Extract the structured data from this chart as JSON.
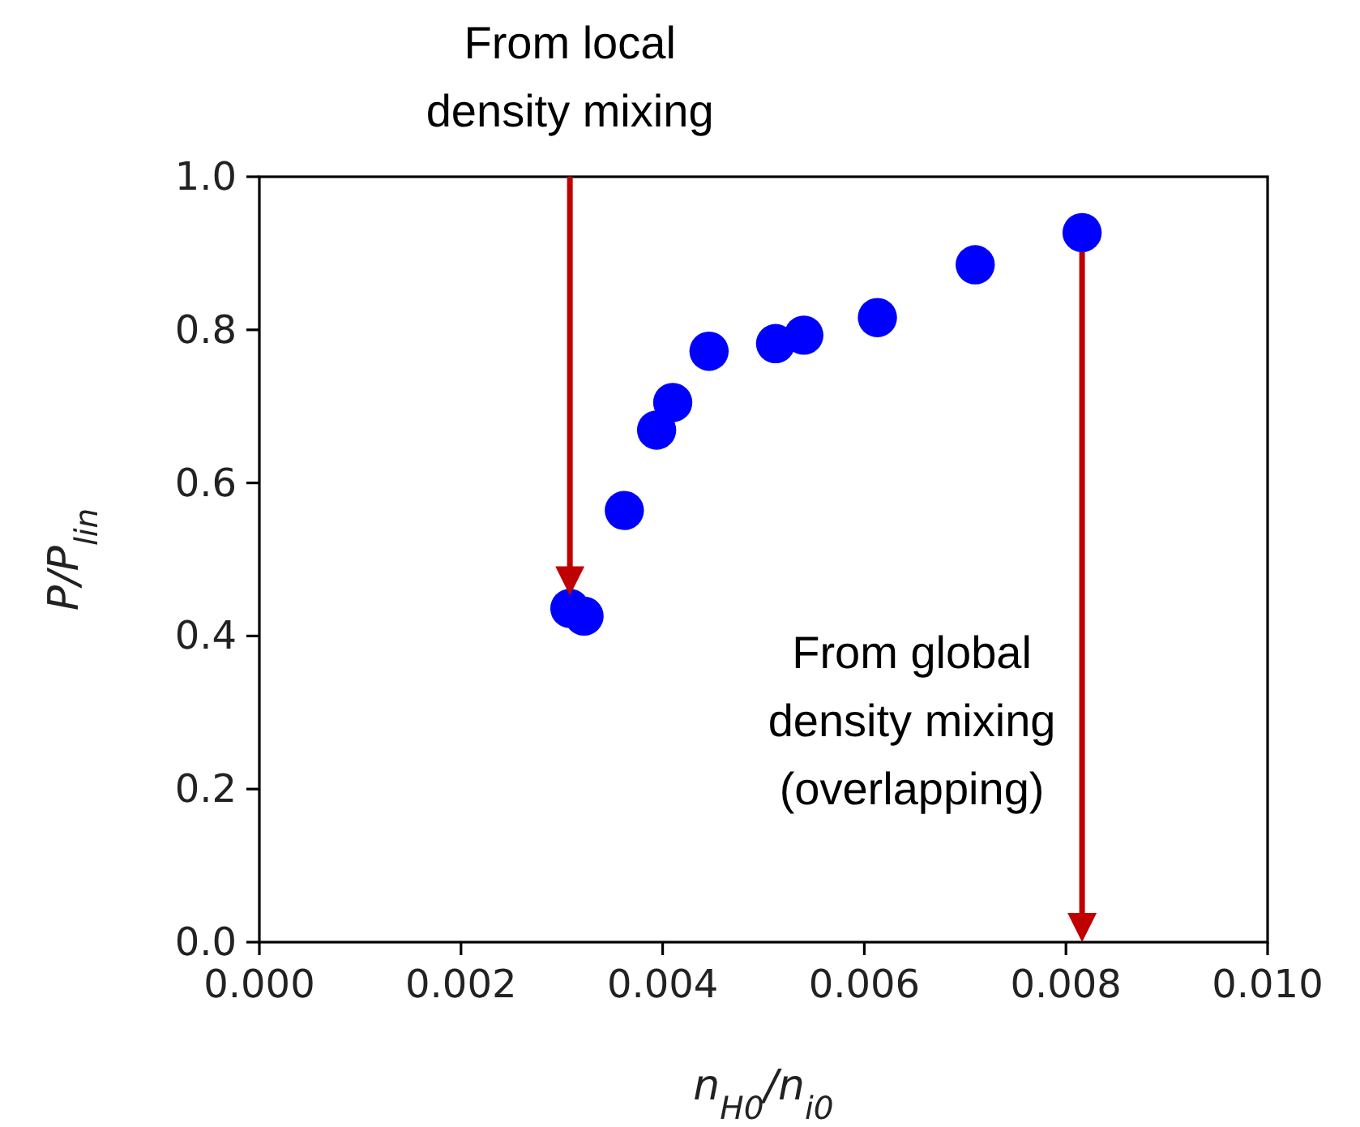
{
  "chart_data": {
    "type": "scatter",
    "xlabel": "n$_{H0}$/n$_{i0}$",
    "ylabel": "P/P$_{lin}$",
    "x": [
      0.00308,
      0.00322,
      0.00362,
      0.00394,
      0.0041,
      0.00446,
      0.00512,
      0.0054,
      0.00613,
      0.0071,
      0.00816
    ],
    "series": [
      {
        "color": "#0000ff",
        "values": [
          0.436,
          0.426,
          0.564,
          0.669,
          0.705,
          0.772,
          0.782,
          0.793,
          0.816,
          0.885,
          0.927
        ]
      }
    ],
    "marker": "circle",
    "grid": false,
    "xlim": [
      0,
      0.01
    ],
    "xticks": [
      {
        "value": 0,
        "label": "0.000"
      },
      {
        "value": 0.002,
        "label": "0.002"
      },
      {
        "value": 0.004,
        "label": "0.004"
      },
      {
        "value": 0.006,
        "label": "0.006"
      },
      {
        "value": 0.008,
        "label": "0.008"
      },
      {
        "value": 0.01,
        "label": "0.010"
      }
    ],
    "ylim": [
      0,
      1
    ],
    "yticks": [
      {
        "value": 0,
        "label": "0.0"
      },
      {
        "value": 0.2,
        "label": "0.2"
      },
      {
        "value": 0.4,
        "label": "0.4"
      },
      {
        "value": 0.6,
        "label": "0.6"
      },
      {
        "value": 0.8,
        "label": "0.8"
      },
      {
        "value": 1,
        "label": "1.0"
      }
    ],
    "annotations": [
      "From local\ndensity mixing",
      "From global\ndensity mixing\n(overlapping)"
    ]
  }
}
